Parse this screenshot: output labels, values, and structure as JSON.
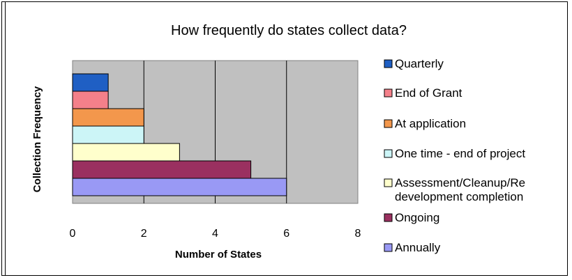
{
  "chart_data": {
    "type": "bar",
    "orientation": "horizontal",
    "title": "How frequently do states collect data?",
    "xlabel": "Number of States",
    "ylabel": "Collection Frequency",
    "xlim": [
      0,
      8
    ],
    "xticks": [
      "0",
      "2",
      "4",
      "6",
      "8"
    ],
    "grid": true,
    "legend_position": "right",
    "plot_background": "#c0c0c0",
    "categories": [
      "Quarterly",
      "End of Grant",
      "At application",
      "One time - end of project",
      "Assessment/Cleanup/Redevelopment completion",
      "Ongoing",
      "Annually"
    ],
    "values": [
      1,
      1,
      2,
      2,
      3,
      5,
      6
    ],
    "colors": [
      "#1f5fc4",
      "#f4808a",
      "#f3974c",
      "#ccf5f7",
      "#ffffcc",
      "#9a3060",
      "#9999f5"
    ],
    "legend": [
      {
        "lines": [
          "Quarterly"
        ]
      },
      {
        "lines": [
          "End of Grant"
        ]
      },
      {
        "lines": [
          "At application"
        ]
      },
      {
        "lines": [
          "One time - end of project"
        ]
      },
      {
        "lines": [
          "Assessment/Cleanup/Re",
          "development completion"
        ]
      },
      {
        "lines": [
          "Ongoing"
        ]
      },
      {
        "lines": [
          "Annually"
        ]
      }
    ]
  }
}
